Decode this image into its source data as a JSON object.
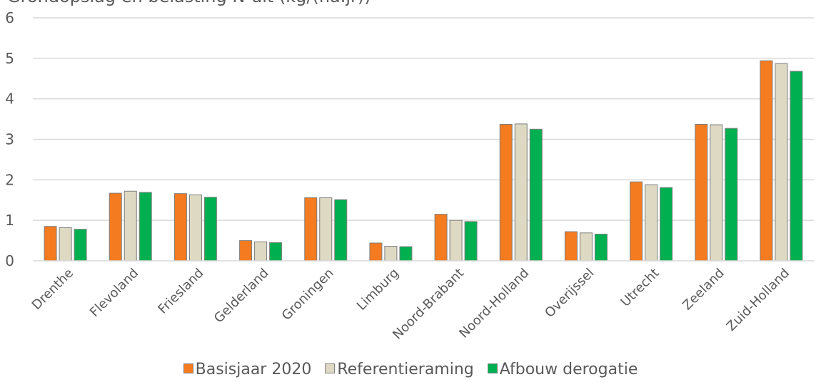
{
  "chart_data": {
    "type": "bar",
    "title": "Grondopslag en belasting N-uit (kg/(ha.jr))",
    "categories": [
      "Drenthe",
      "Flevoland",
      "Friesland",
      "Gelderland",
      "Groningen",
      "Limburg",
      "Noord-Brabant",
      "Noord-Holland",
      "Overijssel",
      "Utrecht",
      "Zeeland",
      "Zuid-Holland"
    ],
    "series": [
      {
        "name": "Basisjaar 2020",
        "color": "#f47b20",
        "values": [
          0.85,
          1.67,
          1.66,
          0.5,
          1.56,
          0.44,
          1.15,
          3.37,
          0.72,
          1.95,
          3.37,
          4.94
        ]
      },
      {
        "name": "Referentieraming",
        "color": "#ddd9c3",
        "values": [
          0.82,
          1.72,
          1.63,
          0.47,
          1.56,
          0.36,
          1.0,
          3.38,
          0.69,
          1.88,
          3.36,
          4.87
        ]
      },
      {
        "name": "Afbouw derogatie",
        "color": "#00b050",
        "values": [
          0.78,
          1.69,
          1.57,
          0.45,
          1.51,
          0.35,
          0.97,
          3.25,
          0.66,
          1.81,
          3.27,
          4.68
        ]
      }
    ],
    "ylim": [
      0,
      6
    ],
    "yticks": [
      0,
      1,
      2,
      3,
      4,
      5,
      6
    ],
    "grid": true,
    "legend_position": "bottom"
  }
}
